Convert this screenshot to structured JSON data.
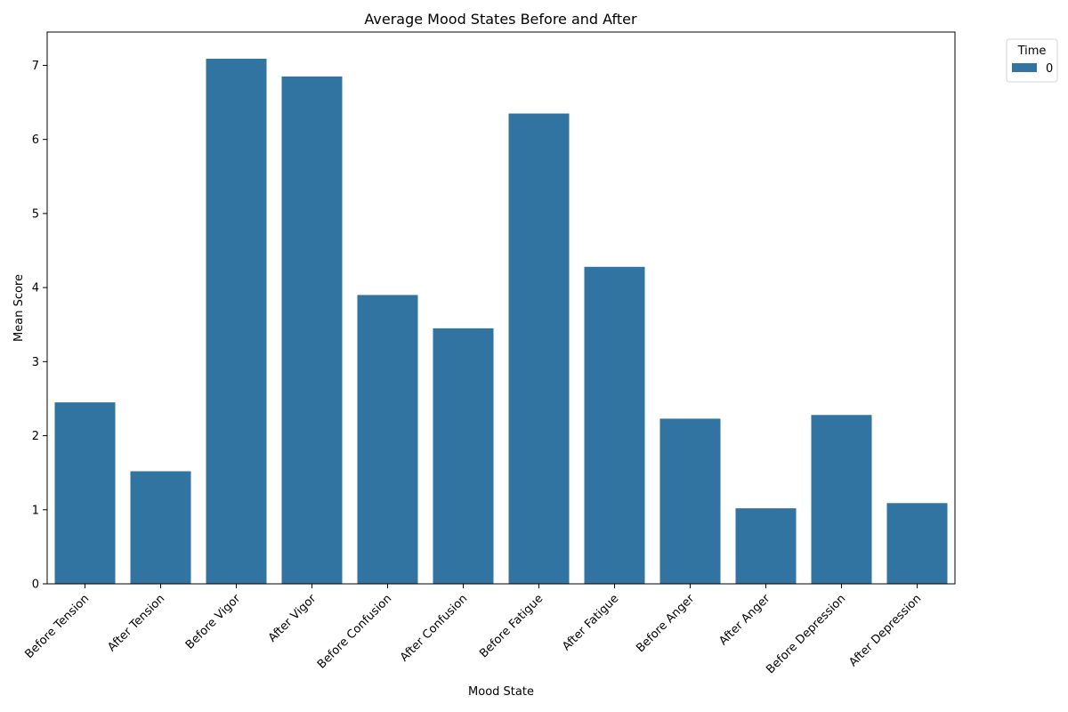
{
  "chart_data": {
    "type": "bar",
    "title": "Average Mood States Before and After",
    "xlabel": "Mood State",
    "ylabel": "Mean Score",
    "categories": [
      "Before Tension",
      "After Tension",
      "Before Vigor",
      "After Vigor",
      "Before Confusion",
      "After Confusion",
      "Before Fatigue",
      "After Fatigue",
      "Before Anger",
      "After Anger",
      "Before Depression",
      "After Depression"
    ],
    "series": [
      {
        "name": "0",
        "color": "#3274a1",
        "values": [
          2.45,
          1.52,
          7.09,
          6.85,
          3.9,
          3.45,
          6.35,
          4.28,
          2.23,
          1.02,
          2.28,
          1.09
        ]
      }
    ],
    "ylim": [
      0,
      7.45
    ],
    "yticks": [
      0,
      1,
      2,
      3,
      4,
      5,
      6,
      7
    ],
    "grid": false,
    "legend": {
      "title": "Time",
      "placement": "outside-top-right"
    }
  }
}
